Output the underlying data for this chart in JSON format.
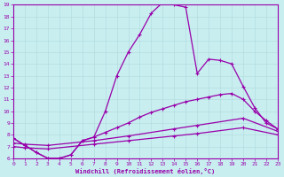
{
  "xlabel": "Windchill (Refroidissement éolien,°C)",
  "bg_color": "#c8eef0",
  "grid_color": "#b0d8dc",
  "line_color": "#9900aa",
  "xlim": [
    0,
    23
  ],
  "ylim": [
    6,
    19
  ],
  "xticks": [
    0,
    1,
    2,
    3,
    4,
    5,
    6,
    7,
    8,
    9,
    10,
    11,
    12,
    13,
    14,
    15,
    16,
    17,
    18,
    19,
    20,
    21,
    22,
    23
  ],
  "yticks": [
    6,
    7,
    8,
    9,
    10,
    11,
    12,
    13,
    14,
    15,
    16,
    17,
    18,
    19
  ],
  "curve1_x": [
    0,
    1,
    2,
    3,
    4,
    5,
    6,
    7,
    8,
    9,
    10,
    11,
    12,
    13,
    14,
    15,
    16,
    17,
    18,
    19,
    20,
    21,
    22,
    23
  ],
  "curve1_y": [
    7.7,
    7.1,
    6.5,
    6.0,
    6.0,
    6.3,
    7.5,
    7.8,
    10.0,
    13.0,
    15.0,
    16.5,
    18.3,
    19.2,
    19.0,
    18.8,
    13.2,
    14.4,
    14.3,
    14.0,
    12.1,
    10.3,
    9.0,
    8.5
  ],
  "curve2_x": [
    0,
    1,
    2,
    3,
    4,
    5,
    6,
    7,
    8,
    9,
    10,
    11,
    12,
    13,
    14,
    15,
    16,
    17,
    18,
    19,
    20,
    21,
    22,
    23
  ],
  "curve2_y": [
    7.7,
    7.1,
    6.5,
    6.0,
    6.0,
    6.3,
    7.5,
    7.8,
    8.2,
    8.6,
    9.0,
    9.5,
    9.9,
    10.2,
    10.5,
    10.8,
    11.0,
    11.2,
    11.4,
    11.5,
    11.0,
    10.0,
    9.2,
    8.5
  ],
  "curve3_x": [
    0,
    1,
    3,
    7,
    10,
    14,
    16,
    20,
    23
  ],
  "curve3_y": [
    7.3,
    7.2,
    7.1,
    7.5,
    7.9,
    8.5,
    8.8,
    9.4,
    8.3
  ],
  "curve4_x": [
    0,
    1,
    3,
    7,
    10,
    14,
    16,
    20,
    23
  ],
  "curve4_y": [
    7.0,
    6.9,
    6.8,
    7.2,
    7.5,
    7.9,
    8.1,
    8.6,
    8.0
  ]
}
